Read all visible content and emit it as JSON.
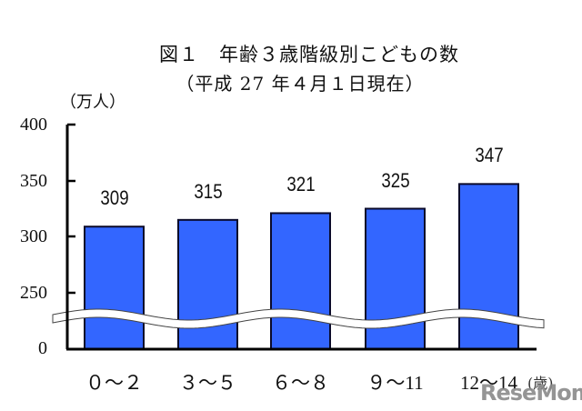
{
  "chart_data": {
    "type": "bar",
    "title": "図１　年齢３歳階級別こどもの数",
    "subtitle": "（平成 27 年４月１日現在）",
    "xlabel": "(歳)",
    "ylabel": "（万人）",
    "categories": [
      "０～２",
      "３～５",
      "６～８",
      "９～11",
      "12～14"
    ],
    "values": [
      309,
      315,
      321,
      325,
      347
    ],
    "value_labels": [
      "309",
      "315",
      "321",
      "325",
      "347"
    ],
    "yticks": [
      "400",
      "350",
      "300",
      "250",
      "0"
    ],
    "ylim": [
      0,
      400
    ],
    "axis_break": "between 0 and 250 (wavy break)",
    "grid": false,
    "legend": "none",
    "bar_color": "#3366ff",
    "bar_edge_color": "#0a0a2a"
  },
  "watermark": {
    "text": "ReseMom",
    "dot": "."
  }
}
